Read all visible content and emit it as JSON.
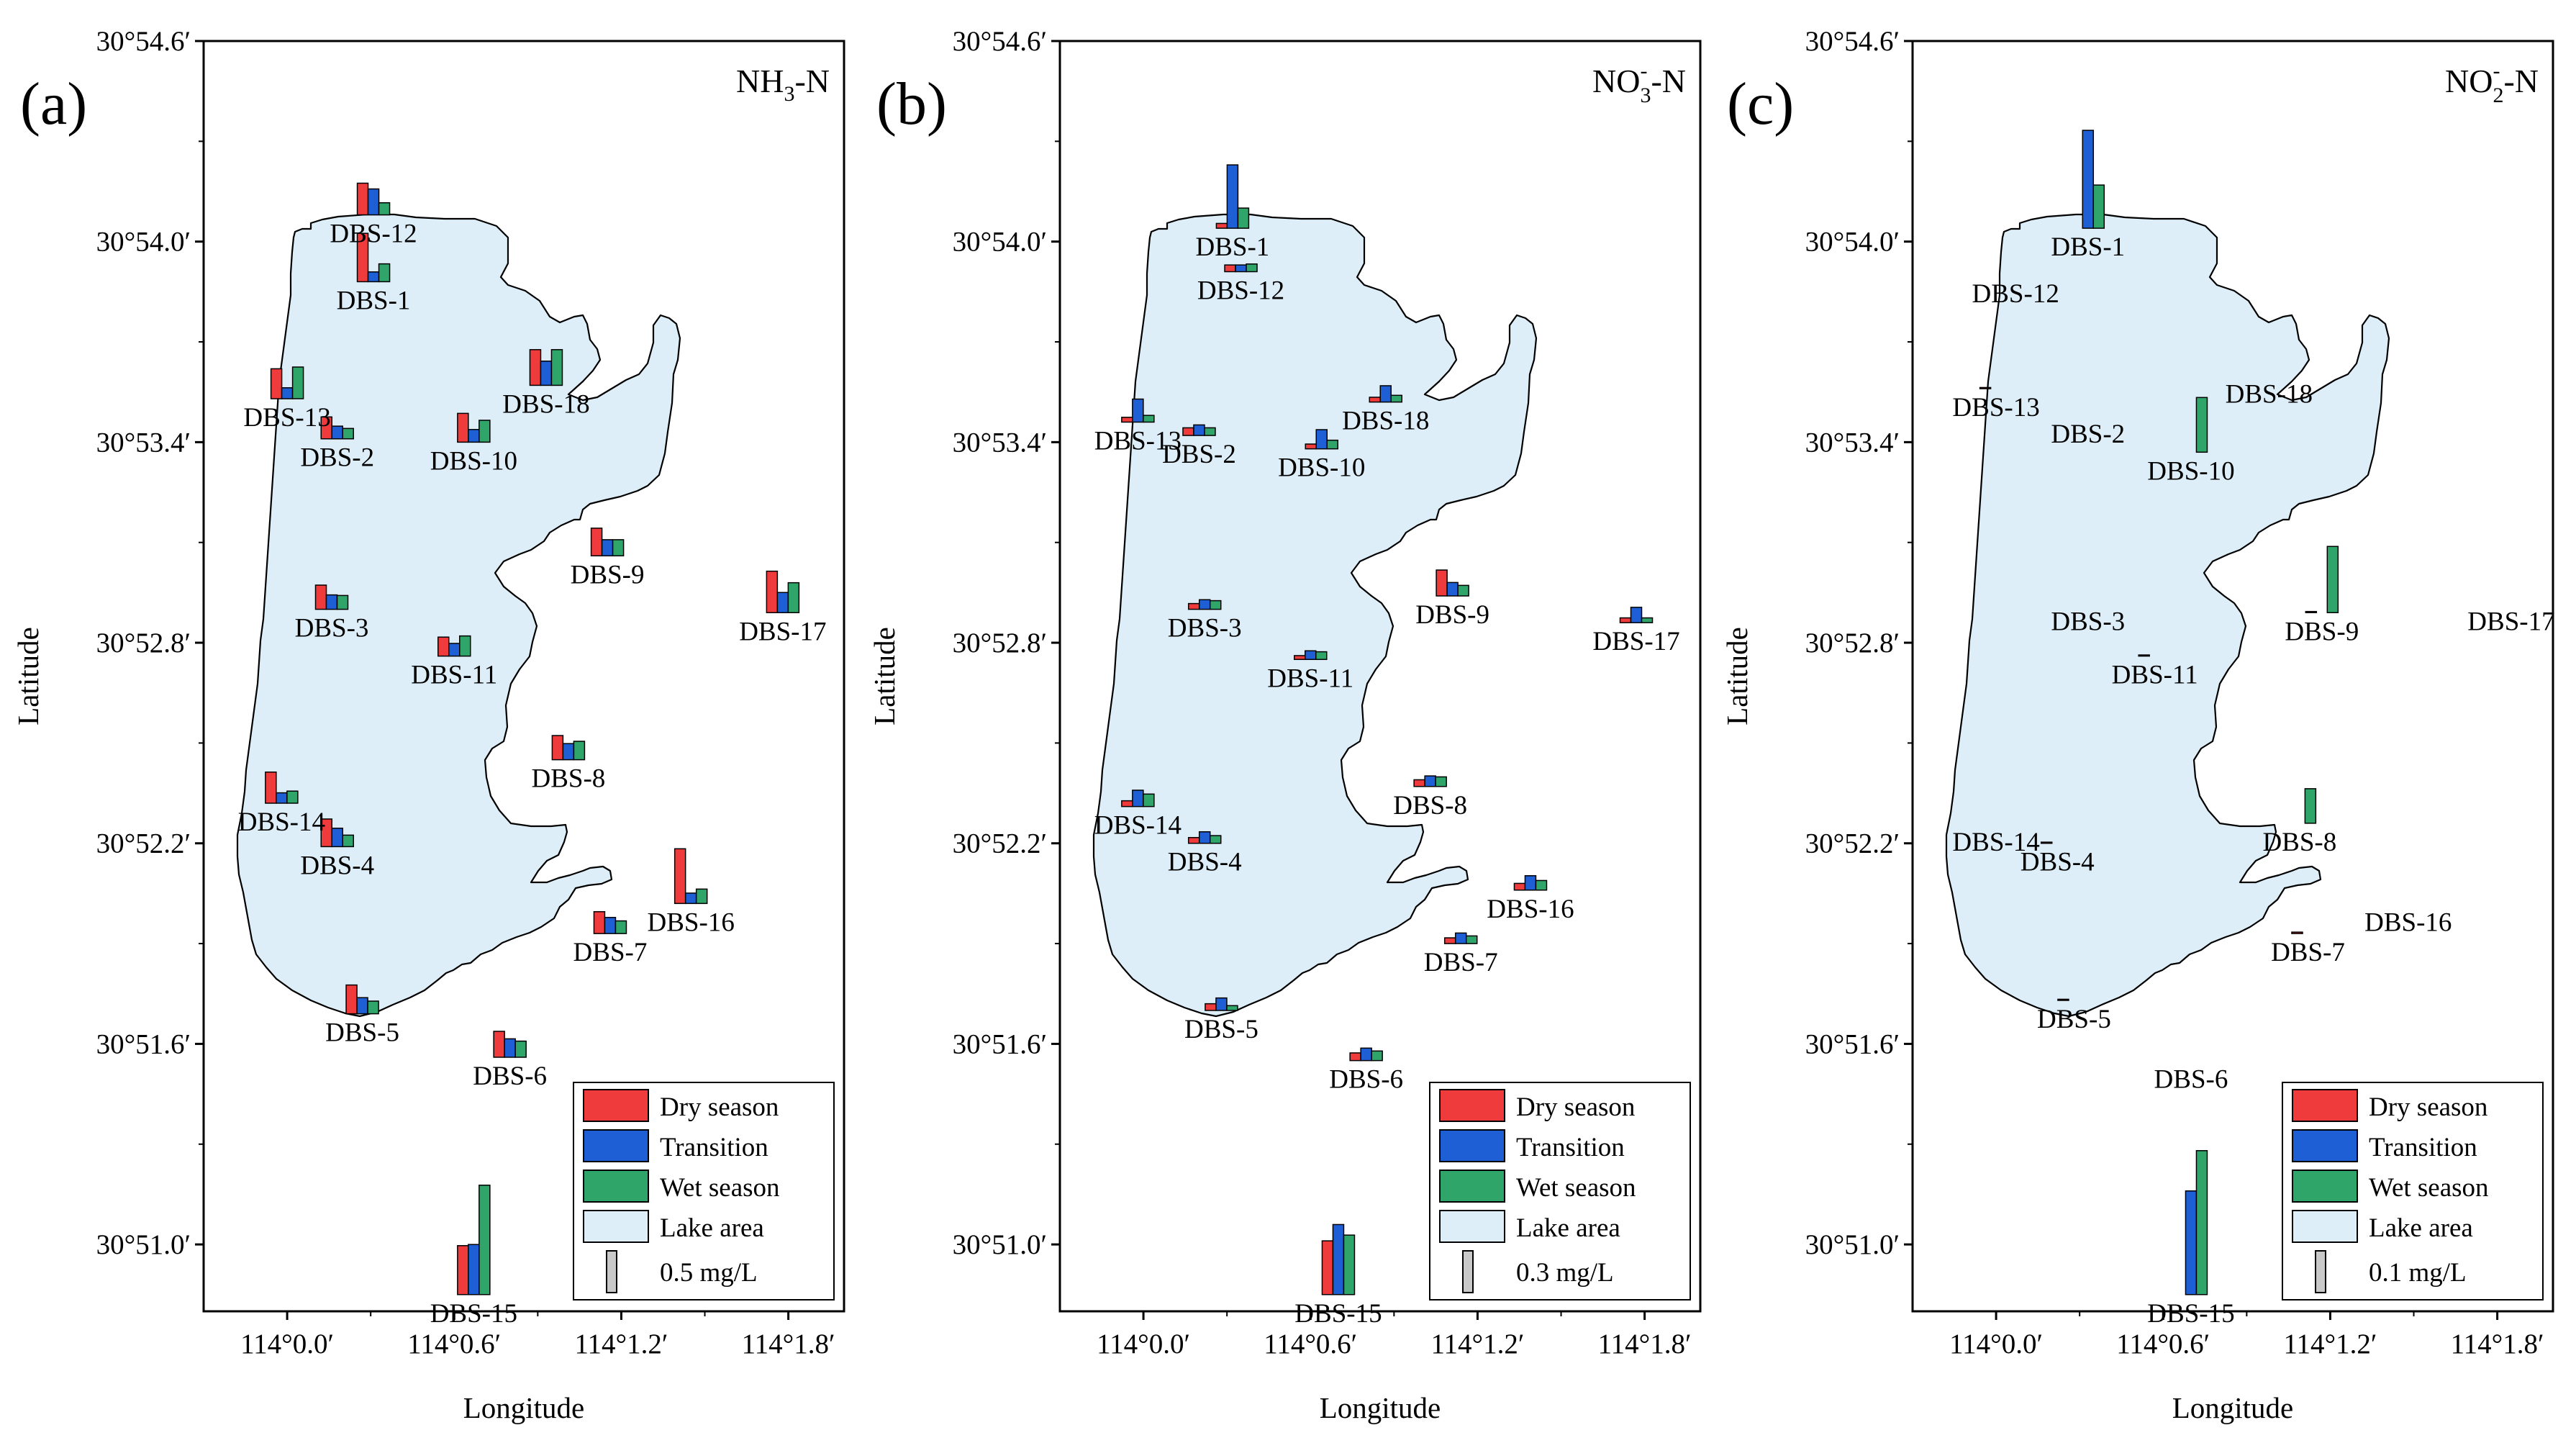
{
  "figure": {
    "colors": {
      "dry": "#ef3b3b",
      "transition": "#1f5fd6",
      "wet": "#2fa56a",
      "lake": "#ddeef8"
    },
    "legend_labels": [
      "Dry season",
      "Transition",
      "Wet season",
      "Lake area"
    ]
  },
  "chart_data": [
    {
      "type": "bar",
      "panel_label": "(a)",
      "title_main": "NH",
      "title_sub": "3",
      "title_tail": "-N",
      "xlabel": "Longitude",
      "ylabel": "Latitude",
      "x_ticks": [
        "114°0.0′",
        "114°0.6′",
        "114°1.2′",
        "114°1.8′"
      ],
      "y_ticks": [
        "30°51.0′",
        "30°51.6′",
        "30°52.2′",
        "30°52.8′",
        "30°53.4′",
        "30°54.0′",
        "30°54.6′"
      ],
      "xlim": [
        -0.3,
        2.0
      ],
      "ylim": [
        50.8,
        54.6
      ],
      "scale_label": "0.5 mg/L",
      "scale_value": 0.5,
      "series": [
        "Dry season",
        "Transition",
        "Wet season"
      ],
      "stations": [
        {
          "name": "DBS-1",
          "lon": 0.31,
          "lat": 53.88,
          "values": [
            0.84,
            0.17,
            0.31
          ]
        },
        {
          "name": "DBS-2",
          "lon": 0.18,
          "lat": 53.41,
          "values": [
            0.38,
            0.22,
            0.18
          ]
        },
        {
          "name": "DBS-3",
          "lon": 0.16,
          "lat": 52.9,
          "values": [
            0.42,
            0.25,
            0.24
          ]
        },
        {
          "name": "DBS-4",
          "lon": 0.18,
          "lat": 52.19,
          "values": [
            0.48,
            0.32,
            0.2
          ]
        },
        {
          "name": "DBS-5",
          "lon": 0.27,
          "lat": 51.69,
          "values": [
            0.5,
            0.28,
            0.22
          ]
        },
        {
          "name": "DBS-6",
          "lon": 0.8,
          "lat": 51.56,
          "values": [
            0.45,
            0.32,
            0.28
          ]
        },
        {
          "name": "DBS-7",
          "lon": 1.16,
          "lat": 51.93,
          "values": [
            0.38,
            0.28,
            0.22
          ]
        },
        {
          "name": "DBS-8",
          "lon": 1.01,
          "lat": 52.45,
          "values": [
            0.42,
            0.28,
            0.32
          ]
        },
        {
          "name": "DBS-9",
          "lon": 1.15,
          "lat": 53.06,
          "values": [
            0.48,
            0.28,
            0.28
          ]
        },
        {
          "name": "DBS-10",
          "lon": 0.67,
          "lat": 53.4,
          "values": [
            0.5,
            0.22,
            0.38
          ]
        },
        {
          "name": "DBS-11",
          "lon": 0.6,
          "lat": 52.76,
          "values": [
            0.33,
            0.22,
            0.35
          ]
        },
        {
          "name": "DBS-12",
          "lon": 0.31,
          "lat": 54.08,
          "values": [
            0.55,
            0.45,
            0.21
          ]
        },
        {
          "name": "DBS-13",
          "lon": 0.0,
          "lat": 53.53,
          "values": [
            0.52,
            0.19,
            0.55
          ]
        },
        {
          "name": "DBS-14",
          "lon": -0.02,
          "lat": 52.32,
          "values": [
            0.54,
            0.18,
            0.21
          ]
        },
        {
          "name": "DBS-15",
          "lon": 0.67,
          "lat": 50.85,
          "values": [
            0.85,
            0.87,
            1.9
          ]
        },
        {
          "name": "DBS-16",
          "lon": 1.45,
          "lat": 52.02,
          "values": [
            0.95,
            0.18,
            0.25
          ]
        },
        {
          "name": "DBS-17",
          "lon": 1.78,
          "lat": 52.89,
          "values": [
            0.72,
            0.35,
            0.52
          ]
        },
        {
          "name": "DBS-18",
          "lon": 0.93,
          "lat": 53.57,
          "values": [
            0.62,
            0.42,
            0.62
          ]
        }
      ]
    },
    {
      "type": "bar",
      "panel_label": "(b)",
      "title_main": "NO",
      "title_sub": "3",
      "title_sup": "-",
      "title_tail": "-N",
      "xlabel": "Longitude",
      "ylabel": "Latitude",
      "x_ticks": [
        "114°0.0′",
        "114°0.6′",
        "114°1.2′",
        "114°1.8′"
      ],
      "y_ticks": [
        "30°51.0′",
        "30°51.6′",
        "30°52.2′",
        "30°52.8′",
        "30°53.4′",
        "30°54.0′",
        "30°54.6′"
      ],
      "xlim": [
        -0.3,
        2.0
      ],
      "ylim": [
        50.8,
        54.6
      ],
      "scale_label": "0.3 mg/L",
      "scale_value": 0.3,
      "series": [
        "Dry season",
        "Transition",
        "Wet season"
      ],
      "stations": [
        {
          "name": "DBS-1",
          "lon": 0.32,
          "lat": 54.04,
          "values": [
            0.05,
            0.66,
            0.21
          ]
        },
        {
          "name": "DBS-2",
          "lon": 0.2,
          "lat": 53.42,
          "values": [
            0.08,
            0.11,
            0.08
          ]
        },
        {
          "name": "DBS-3",
          "lon": 0.22,
          "lat": 52.9,
          "values": [
            0.06,
            0.1,
            0.09
          ]
        },
        {
          "name": "DBS-4",
          "lon": 0.22,
          "lat": 52.2,
          "values": [
            0.06,
            0.12,
            0.08
          ]
        },
        {
          "name": "DBS-5",
          "lon": 0.28,
          "lat": 51.7,
          "values": [
            0.07,
            0.13,
            0.05
          ]
        },
        {
          "name": "DBS-6",
          "lon": 0.8,
          "lat": 51.55,
          "values": [
            0.08,
            0.13,
            0.1
          ]
        },
        {
          "name": "DBS-7",
          "lon": 1.14,
          "lat": 51.9,
          "values": [
            0.06,
            0.11,
            0.08
          ]
        },
        {
          "name": "DBS-8",
          "lon": 1.03,
          "lat": 52.37,
          "values": [
            0.07,
            0.11,
            0.1
          ]
        },
        {
          "name": "DBS-9",
          "lon": 1.11,
          "lat": 52.94,
          "values": [
            0.27,
            0.14,
            0.11
          ]
        },
        {
          "name": "DBS-10",
          "lon": 0.64,
          "lat": 53.38,
          "values": [
            0.05,
            0.2,
            0.09
          ]
        },
        {
          "name": "DBS-11",
          "lon": 0.6,
          "lat": 52.75,
          "values": [
            0.04,
            0.09,
            0.08
          ]
        },
        {
          "name": "DBS-12",
          "lon": 0.35,
          "lat": 53.91,
          "values": [
            0.07,
            0.07,
            0.08
          ]
        },
        {
          "name": "DBS-13",
          "lon": -0.02,
          "lat": 53.46,
          "values": [
            0.05,
            0.24,
            0.07
          ]
        },
        {
          "name": "DBS-14",
          "lon": -0.02,
          "lat": 52.31,
          "values": [
            0.06,
            0.17,
            0.13
          ]
        },
        {
          "name": "DBS-15",
          "lon": 0.7,
          "lat": 50.85,
          "values": [
            0.56,
            0.73,
            0.62
          ]
        },
        {
          "name": "DBS-16",
          "lon": 1.39,
          "lat": 52.06,
          "values": [
            0.07,
            0.15,
            0.1
          ]
        },
        {
          "name": "DBS-17",
          "lon": 1.77,
          "lat": 52.86,
          "values": [
            0.05,
            0.16,
            0.05
          ]
        },
        {
          "name": "DBS-18",
          "lon": 0.87,
          "lat": 53.52,
          "values": [
            0.05,
            0.17,
            0.07
          ]
        }
      ]
    },
    {
      "type": "bar",
      "panel_label": "(c)",
      "title_main": "NO",
      "title_sub": "2",
      "title_sup": "-",
      "title_tail": "-N",
      "xlabel": "Longitude",
      "ylabel": "Latitude",
      "x_ticks": [
        "114°0.0′",
        "114°0.6′",
        "114°1.2′",
        "114°1.8′"
      ],
      "y_ticks": [
        "30°51.0′",
        "30°51.6′",
        "30°52.2′",
        "30°52.8′",
        "30°53.4′",
        "30°54.0′",
        "30°54.6′"
      ],
      "xlim": [
        -0.3,
        2.0
      ],
      "ylim": [
        50.8,
        54.6
      ],
      "scale_label": "0.1 mg/L",
      "scale_value": 0.1,
      "series": [
        "Dry season",
        "Transition",
        "Wet season"
      ],
      "stations": [
        {
          "name": "DBS-1",
          "lon": 0.33,
          "lat": 54.04,
          "values": [
            0.0,
            0.34,
            0.15
          ]
        },
        {
          "name": "DBS-2",
          "lon": 0.33,
          "lat": 53.48,
          "values": [
            0.0,
            0.0,
            0.0
          ]
        },
        {
          "name": "DBS-3",
          "lon": 0.33,
          "lat": 52.92,
          "values": [
            0.0,
            0.0,
            0.0
          ]
        },
        {
          "name": "DBS-4",
          "lon": 0.22,
          "lat": 52.2,
          "values": [
            0.004,
            0.0,
            0.0
          ]
        },
        {
          "name": "DBS-5",
          "lon": 0.28,
          "lat": 51.73,
          "values": [
            0.004,
            0.0,
            0.0
          ]
        },
        {
          "name": "DBS-6",
          "lon": 0.7,
          "lat": 51.55,
          "values": [
            0.0,
            0.0,
            0.0
          ]
        },
        {
          "name": "DBS-7",
          "lon": 1.12,
          "lat": 51.93,
          "values": [
            0.005,
            0.0,
            0.0
          ]
        },
        {
          "name": "DBS-8",
          "lon": 1.09,
          "lat": 52.26,
          "values": [
            0.0,
            0.0,
            0.12
          ]
        },
        {
          "name": "DBS-9",
          "lon": 1.17,
          "lat": 52.89,
          "values": [
            0.004,
            0.0,
            0.23
          ]
        },
        {
          "name": "DBS-10",
          "lon": 0.7,
          "lat": 53.37,
          "values": [
            0.0,
            0.0,
            0.19
          ]
        },
        {
          "name": "DBS-11",
          "lon": 0.57,
          "lat": 52.76,
          "values": [
            0.004,
            0.0,
            0.0
          ]
        },
        {
          "name": "DBS-12",
          "lon": 0.07,
          "lat": 53.9,
          "values": [
            0.0,
            0.0,
            0.0
          ]
        },
        {
          "name": "DBS-13",
          "lon": 0.0,
          "lat": 53.56,
          "values": [
            0.004,
            0.0,
            0.0
          ]
        },
        {
          "name": "DBS-14",
          "lon": 0.0,
          "lat": 52.26,
          "values": [
            0.0,
            0.0,
            0.0
          ]
        },
        {
          "name": "DBS-15",
          "lon": 0.7,
          "lat": 50.85,
          "values": [
            0.0,
            0.36,
            0.5
          ]
        },
        {
          "name": "DBS-16",
          "lon": 1.48,
          "lat": 52.02,
          "values": [
            0.0,
            0.0,
            0.0
          ]
        },
        {
          "name": "DBS-17",
          "lon": 1.85,
          "lat": 52.92,
          "values": [
            0.0,
            0.0,
            0.0
          ]
        },
        {
          "name": "DBS-18",
          "lon": 0.98,
          "lat": 53.6,
          "values": [
            0.0,
            0.0,
            0.0
          ]
        }
      ]
    }
  ]
}
